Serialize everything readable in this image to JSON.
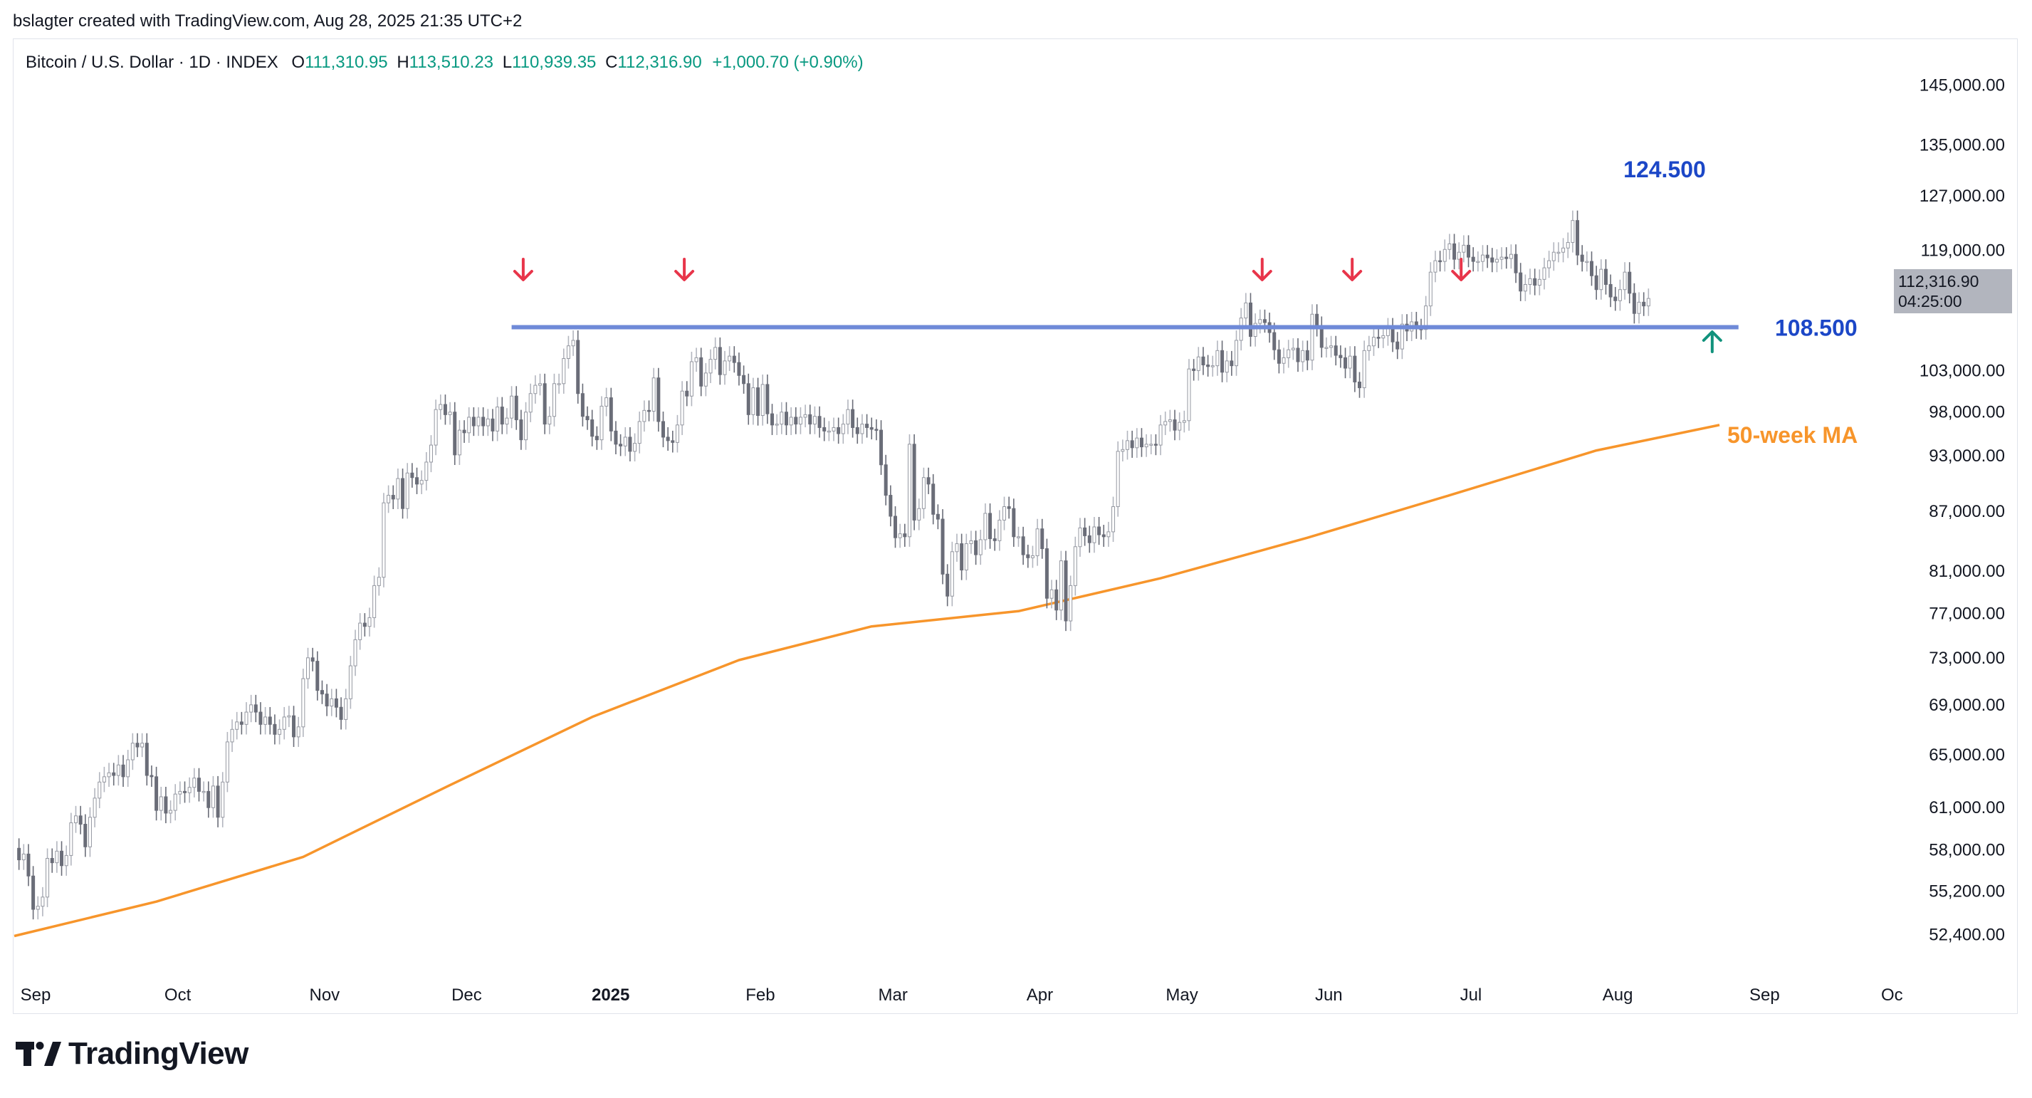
{
  "header": {
    "attribution": "bslagter created with TradingView.com, Aug 28, 2025 21:35 UTC+2"
  },
  "legend": {
    "symbol": "Bitcoin / U.S. Dollar · 1D · INDEX",
    "o_label": "O",
    "o_value": "111,310.95",
    "h_label": "H",
    "h_value": "113,510.23",
    "l_label": "L",
    "l_value": "110,939.35",
    "c_label": "C",
    "c_value": "112,316.90",
    "change": "+1,000.70 (+0.90%)"
  },
  "last_price": {
    "price": "112,316.90",
    "countdown": "04:25:00"
  },
  "annotations": {
    "peak_label": "124.500",
    "support_label": "108.500",
    "ma_label": "50-week MA"
  },
  "colors": {
    "candle": "#8d9096",
    "support_line": "#6f8ad8",
    "label_blue": "#1c47c7",
    "ma_line": "#f7952b",
    "arrow_down": "#e8354a",
    "arrow_up": "#11927c",
    "legend_values": "#089981"
  },
  "logo": {
    "text": "TradingView"
  },
  "chart_data": {
    "type": "candlestick",
    "title": "Bitcoin / U.S. Dollar · 1D · INDEX",
    "y_scale": "log",
    "ylim": [
      51000,
      150000
    ],
    "y_ticks": [
      "145,000.00",
      "135,000.00",
      "127,000.00",
      "119,000.00",
      "112,316.90",
      "103,000.00",
      "98,000.00",
      "93,000.00",
      "87,000.00",
      "81,000.00",
      "77,000.00",
      "73,000.00",
      "69,000.00",
      "65,000.00",
      "61,000.00",
      "58,000.00",
      "55,200.00",
      "52,400.00"
    ],
    "x_ticks": [
      {
        "label": "Sep",
        "date": "2024-09-01",
        "bold": false
      },
      {
        "label": "Oct",
        "date": "2024-10-01",
        "bold": false
      },
      {
        "label": "Nov",
        "date": "2024-11-01",
        "bold": false
      },
      {
        "label": "Dec",
        "date": "2024-12-01",
        "bold": false
      },
      {
        "label": "2025",
        "date": "2025-01-01",
        "bold": true
      },
      {
        "label": "Feb",
        "date": "2025-02-01",
        "bold": false
      },
      {
        "label": "Mar",
        "date": "2025-03-01",
        "bold": false
      },
      {
        "label": "Apr",
        "date": "2025-04-01",
        "bold": false
      },
      {
        "label": "May",
        "date": "2025-05-01",
        "bold": false
      },
      {
        "label": "Jun",
        "date": "2025-06-01",
        "bold": false
      },
      {
        "label": "Jul",
        "date": "2025-07-01",
        "bold": false
      },
      {
        "label": "Aug",
        "date": "2025-08-01",
        "bold": false
      },
      {
        "label": "Sep",
        "date": "2025-09-01",
        "bold": false
      },
      {
        "label": "Oc",
        "date": "2025-10-01",
        "bold": false
      }
    ],
    "daily_closes": {
      "start_date": "2024-09-01",
      "values": [
        58100,
        57300,
        57700,
        56200,
        54000,
        54200,
        54800,
        57400,
        57100,
        57900,
        56900,
        57600,
        59900,
        60400,
        59800,
        58200,
        60300,
        61700,
        62900,
        63300,
        63600,
        63400,
        64200,
        63300,
        64600,
        65900,
        65600,
        65900,
        63400,
        63300,
        60800,
        61800,
        60600,
        60800,
        62000,
        62200,
        62100,
        62500,
        63200,
        62200,
        62200,
        61000,
        62600,
        60300,
        62900,
        66000,
        67000,
        67600,
        67400,
        68400,
        69000,
        68400,
        67400,
        68000,
        67400,
        66600,
        67000,
        68000,
        68100,
        66400,
        67200,
        71200,
        73000,
        72700,
        70200,
        69900,
        68900,
        69500,
        68800,
        67800,
        69500,
        72300,
        74600,
        76100,
        75800,
        76600,
        79600,
        80400,
        87900,
        88700,
        88300,
        90500,
        87300,
        91100,
        90600,
        89900,
        90300,
        92300,
        94200,
        98300,
        98900,
        97700,
        98000,
        93100,
        95900,
        95600,
        97400,
        96400,
        97400,
        96400,
        97200,
        95800,
        98600,
        96600,
        97300,
        99900,
        97100,
        94800,
        98000,
        100200,
        101200,
        101400,
        96600,
        97500,
        101400,
        101400,
        104500,
        106100,
        106800,
        100200,
        97500,
        97100,
        95200,
        94800,
        98700,
        99700,
        95800,
        94300,
        94100,
        95100,
        93500,
        94400,
        96900,
        98200,
        98100,
        102100,
        96900,
        95100,
        94700,
        94500,
        96500,
        100500,
        99900,
        104100,
        104600,
        101100,
        102700,
        104400,
        105900,
        102500,
        104200,
        104800,
        104000,
        102400,
        101400,
        97700,
        100900,
        97600,
        101300,
        97800,
        96500,
        96600,
        98000,
        96500,
        97400,
        96600,
        97400,
        97700,
        96600,
        97500,
        96200,
        95800,
        95800,
        96200,
        95500,
        96600,
        98300,
        96200,
        95500,
        96600,
        96200,
        96000,
        95900,
        92000,
        88700,
        86500,
        84300,
        84700,
        84400,
        94300,
        86100,
        87300,
        90600,
        89900,
        86700,
        86200,
        80700,
        78600,
        82900,
        83700,
        81100,
        83700,
        84000,
        82600,
        84100,
        86800,
        84200,
        84000,
        86100,
        87500,
        87300,
        84400,
        84400,
        82600,
        82300,
        82500,
        85200,
        83200,
        78400,
        79200,
        77300,
        82000,
        76300,
        79600,
        83400,
        85300,
        84500,
        83800,
        85400,
        84600,
        84400,
        84900,
        87500,
        93500,
        93700,
        94700,
        93900,
        95000,
        94000,
        94300,
        94300,
        94200,
        96500,
        96900,
        97100,
        95900,
        96800,
        97000,
        103200,
        103000,
        104700,
        103700,
        103500,
        103600,
        105500,
        102800,
        104200,
        103600,
        106800,
        109700,
        111700,
        107300,
        109000,
        109500,
        109100,
        107800,
        105600,
        103900,
        104600,
        105600,
        105800,
        104100,
        105500,
        104300,
        110200,
        108600,
        105900,
        105900,
        106100,
        104900,
        104600,
        103300,
        104800,
        101600,
        100900,
        105500,
        106100,
        107200,
        107100,
        107400,
        108400,
        106600,
        105700,
        108900,
        108000,
        109200,
        108300,
        108200,
        111300,
        115900,
        117500,
        117400,
        119100,
        119900,
        117700,
        118700,
        119700,
        118000,
        117400,
        117400,
        118300,
        117900,
        117300,
        117700,
        118000,
        117800,
        118400,
        115800,
        113300,
        114200,
        115000,
        114100,
        114900,
        116500,
        117500,
        118700,
        118700,
        119300,
        120100,
        123300,
        118300,
        117400,
        117400,
        115400,
        113500,
        116300,
        114200,
        112500,
        112000,
        113500,
        115900,
        113000,
        110300,
        111800,
        111300,
        112300
      ]
    },
    "support_level": 108500,
    "support_label": "108.500",
    "peak_value": 124500,
    "ma_series": {
      "name": "50-week MA",
      "points": [
        {
          "date": "2024-09-01",
          "value": 52300
        },
        {
          "date": "2024-10-01",
          "value": 54500
        },
        {
          "date": "2024-11-01",
          "value": 57500
        },
        {
          "date": "2024-12-01",
          "value": 62500
        },
        {
          "date": "2025-01-01",
          "value": 68000
        },
        {
          "date": "2025-02-01",
          "value": 72800
        },
        {
          "date": "2025-03-01",
          "value": 75800
        },
        {
          "date": "2025-04-01",
          "value": 77200
        },
        {
          "date": "2025-05-01",
          "value": 80300
        },
        {
          "date": "2025-06-01",
          "value": 84300
        },
        {
          "date": "2025-07-01",
          "value": 88700
        },
        {
          "date": "2025-08-01",
          "value": 93600
        },
        {
          "date": "2025-08-27",
          "value": 96500
        }
      ]
    },
    "resistance_touches_dates": [
      "2024-12-17",
      "2025-01-20",
      "2025-05-22",
      "2025-06-10",
      "2025-07-03"
    ],
    "bounce_date": "2025-08-25",
    "grid": false,
    "legend_position": "top-left"
  }
}
